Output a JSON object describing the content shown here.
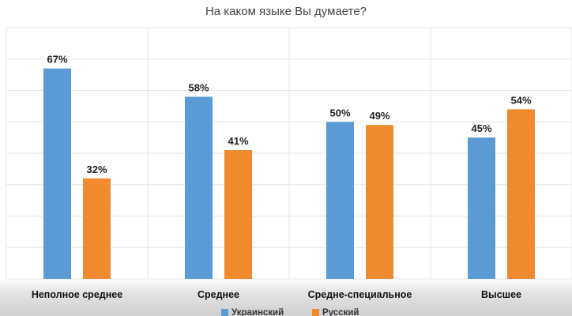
{
  "chart_data": {
    "type": "bar",
    "title": "На каком языке Вы думаете?",
    "categories": [
      "Неполное среднее",
      "Среднее",
      "Средне-специальное",
      "Высшее"
    ],
    "series": [
      {
        "name": "Украинский",
        "color": "#5b9bd5",
        "values": [
          67,
          58,
          50,
          45
        ],
        "labels": [
          "67%",
          "58%",
          "50%",
          "45%"
        ]
      },
      {
        "name": "Русский",
        "color": "#f08a2e",
        "values": [
          32,
          41,
          49,
          54
        ],
        "labels": [
          "32%",
          "41%",
          "49%",
          "54%"
        ]
      }
    ],
    "ylim": [
      0,
      80
    ],
    "grid": true,
    "legend_position": "bottom"
  }
}
